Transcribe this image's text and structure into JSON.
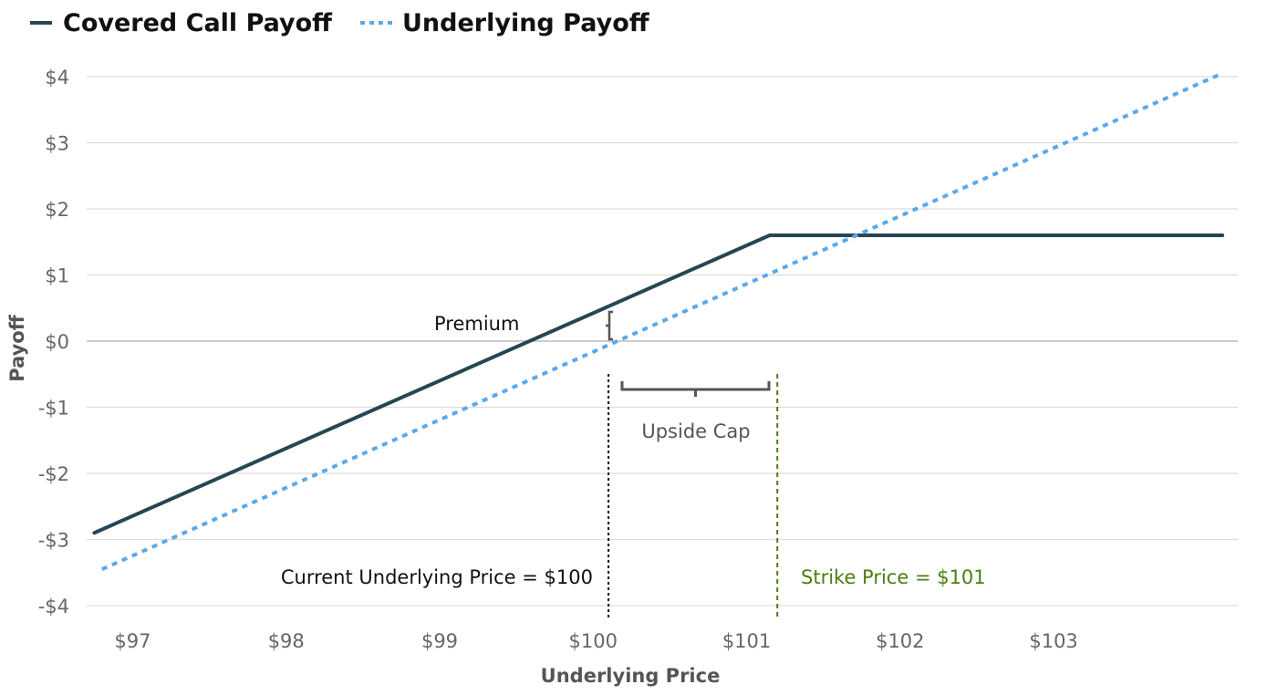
{
  "chart_data": {
    "type": "line",
    "title": "",
    "xlabel": "Underlying Price",
    "ylabel": "Payoff",
    "xlim": [
      96.7,
      104.2
    ],
    "ylim": [
      -4,
      4
    ],
    "grid": true,
    "legend_position": "top-left",
    "x_ticks": [
      97,
      98,
      99,
      100,
      101,
      102,
      103
    ],
    "x_tick_labels": [
      "$97",
      "$98",
      "$99",
      "$100",
      "$101",
      "$102",
      "$103"
    ],
    "y_ticks": [
      4,
      3,
      2,
      1,
      0,
      -1,
      -2,
      -3,
      -4
    ],
    "y_tick_labels": [
      "$4",
      "$3",
      "$2",
      "$1",
      "$0",
      "-$1",
      "-$2",
      "-$3",
      "-$4"
    ],
    "series": [
      {
        "name": "Covered Call Payoff",
        "color": "#264653",
        "style": "solid",
        "x": [
          96.75,
          101.15,
          104.1
        ],
        "y": [
          -2.9,
          1.6,
          1.6
        ]
      },
      {
        "name": "Underlying Payoff",
        "color": "#5aa8ec",
        "style": "dotted",
        "x": [
          96.8,
          104.1
        ],
        "y": [
          -3.45,
          4.05
        ]
      }
    ],
    "reference_lines": [
      {
        "label": "Current Underlying Price = $100",
        "x": 100.1,
        "color": "#111111",
        "label_side": "left"
      },
      {
        "label": "Strike Price = $101",
        "x": 101.2,
        "color": "#4a7f12",
        "label_side": "right"
      }
    ],
    "annotations": {
      "premium": "Premium",
      "upside_cap": "Upside Cap"
    },
    "colors": {
      "grid": "#dddddd",
      "zero_line": "#bbbbbb",
      "tick_text": "#666666",
      "bracket": "#555555"
    }
  }
}
